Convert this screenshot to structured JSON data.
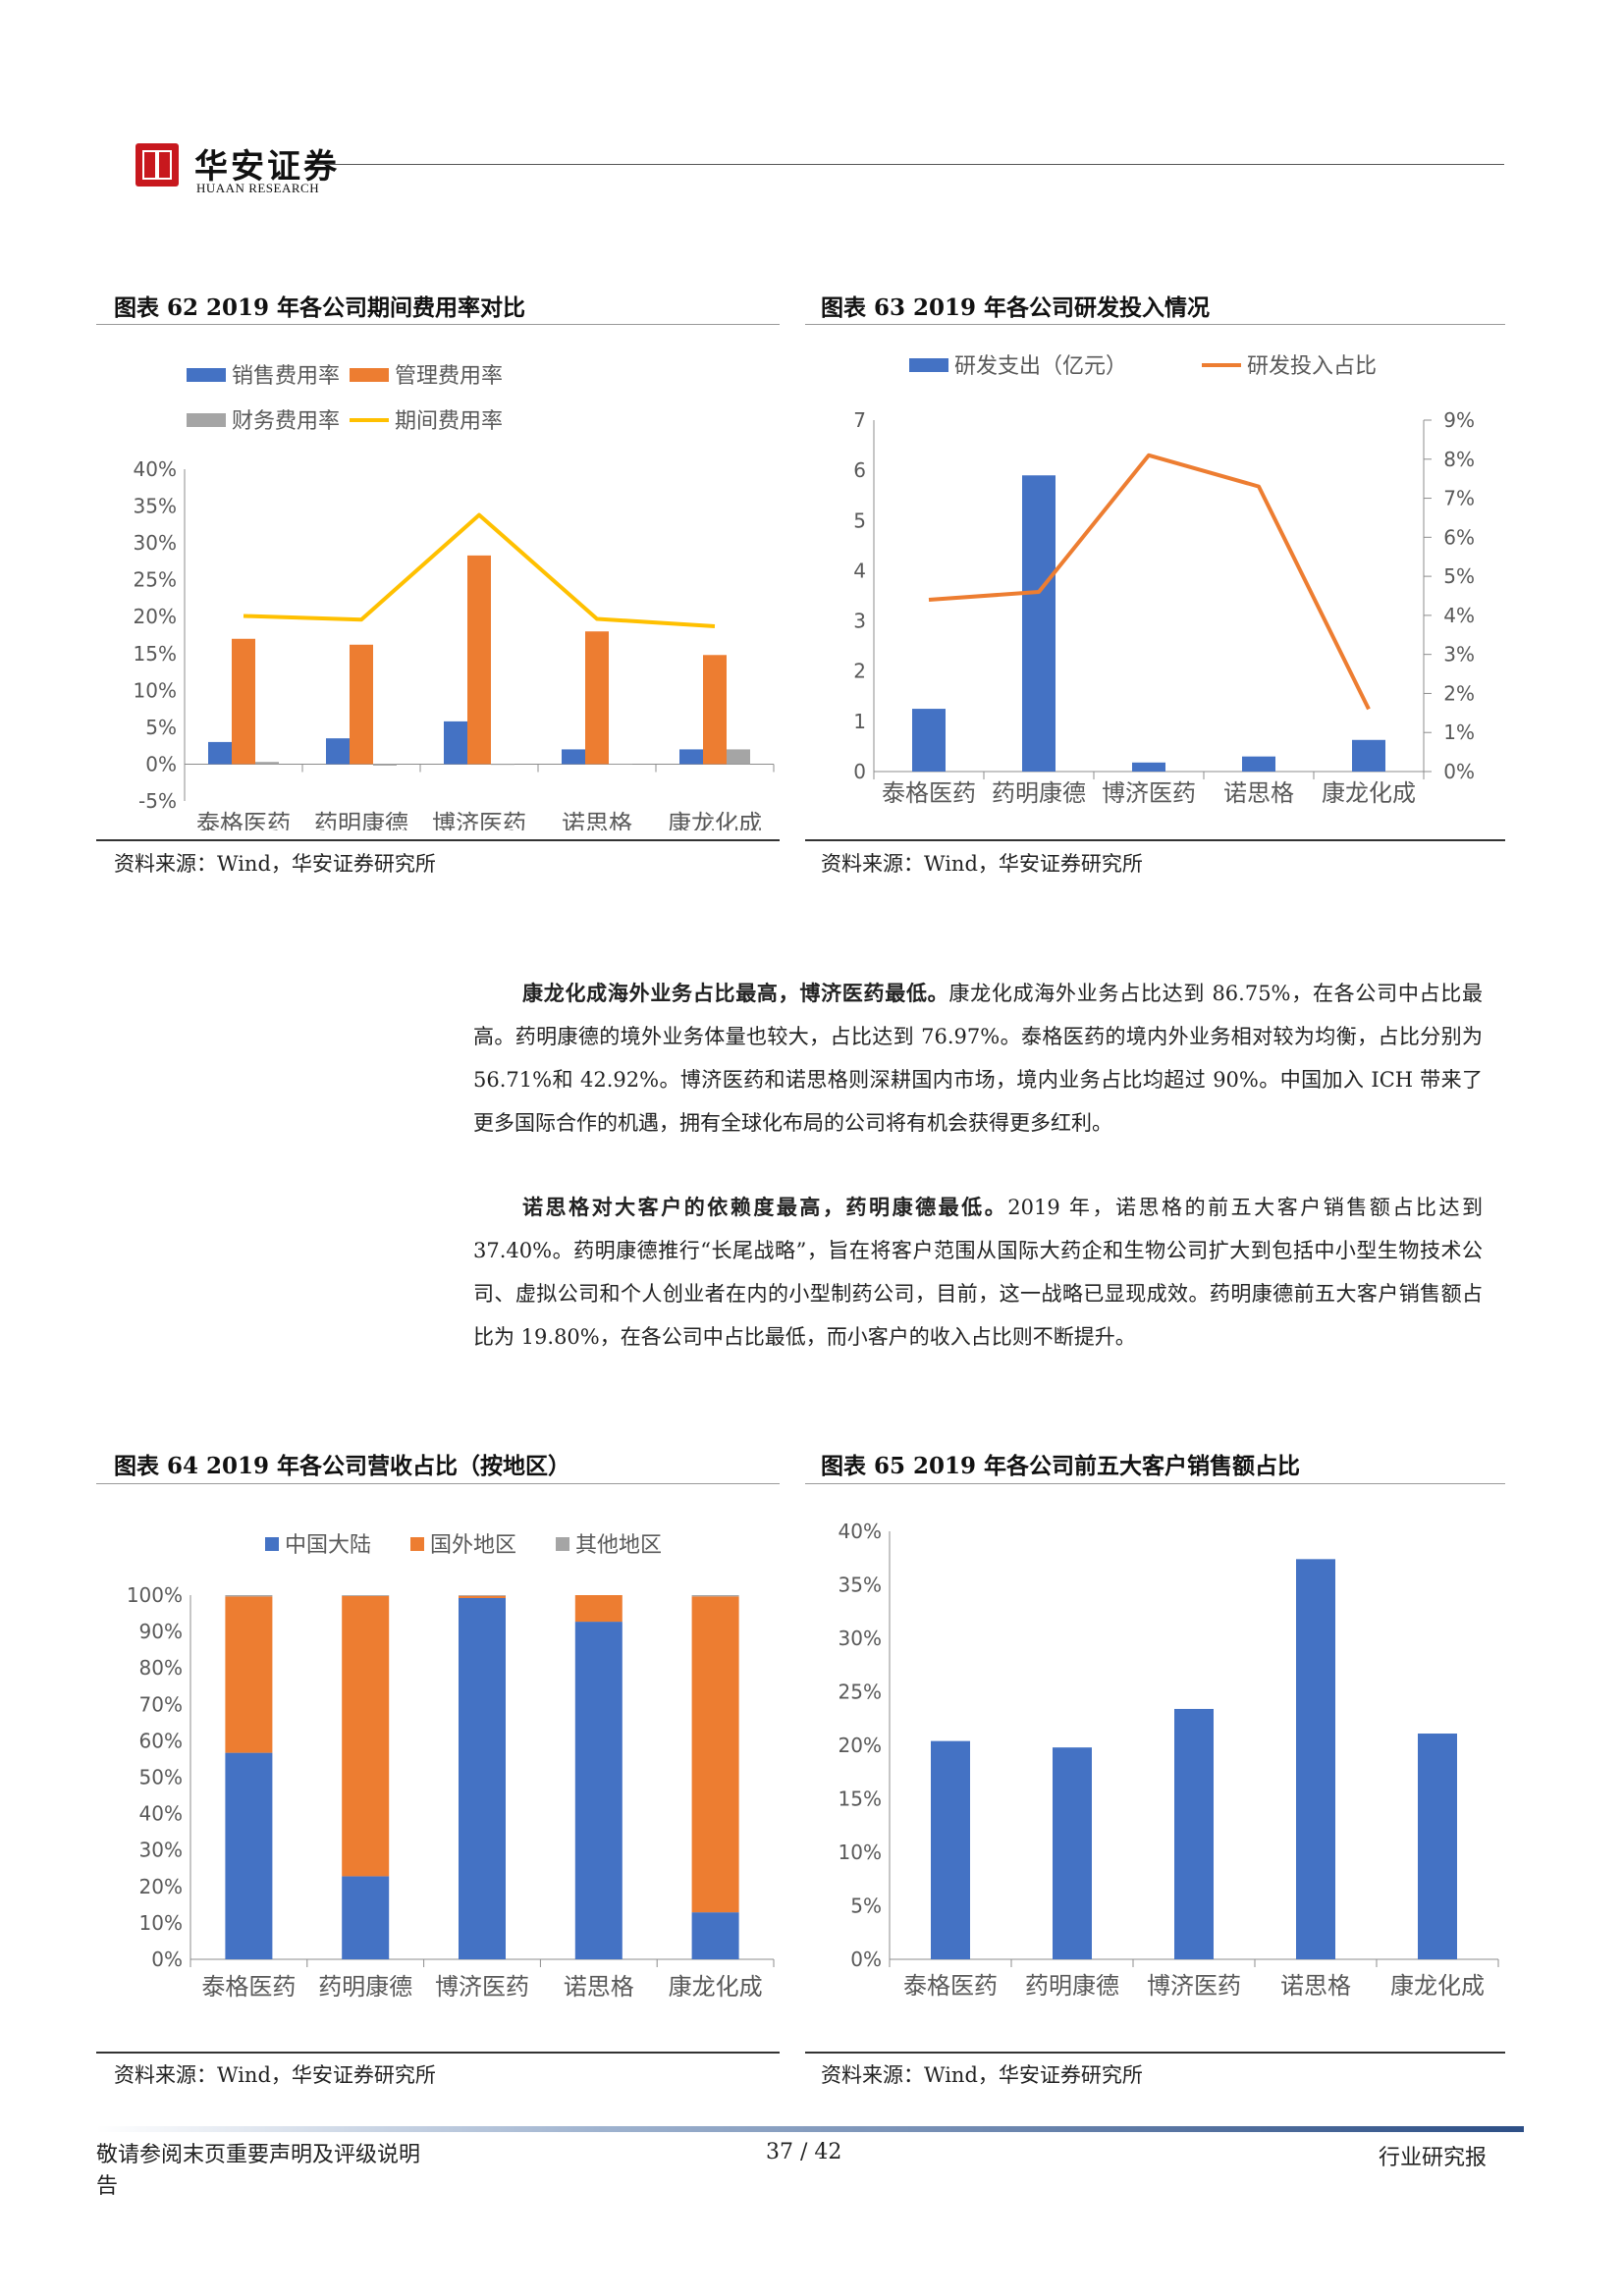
{
  "header": {
    "brand_cn": "华安证券",
    "brand_en": "HUAAN RESEARCH"
  },
  "colors": {
    "blue": "#4472c4",
    "orange": "#ed7d31",
    "gray": "#a5a5a5",
    "yellow": "#ffc000"
  },
  "fig62": {
    "title": "图表 62 2019 年各公司期间费用率对比",
    "source": "资料来源：Wind，华安证券研究所",
    "legend": [
      "销售费用率",
      "管理费用率",
      "财务费用率",
      "期间费用率"
    ],
    "chart_data": {
      "type": "bar",
      "categories": [
        "泰格医药",
        "药明康德",
        "博济医药",
        "诺思格",
        "康龙化成"
      ],
      "series": [
        {
          "name": "销售费用率",
          "values": [
            3.0,
            3.5,
            5.8,
            2.0,
            2.0
          ]
        },
        {
          "name": "管理费用率",
          "values": [
            17.0,
            16.2,
            28.3,
            18.0,
            14.8
          ]
        },
        {
          "name": "财务费用率",
          "values": [
            0.3,
            -0.2,
            -0.1,
            0.0,
            2.0
          ]
        },
        {
          "name": "期间费用率",
          "type": "line",
          "values": [
            20.1,
            19.6,
            33.8,
            19.7,
            18.7
          ]
        }
      ],
      "ylim": [
        -5,
        40
      ],
      "yticks": [
        "-5%",
        "0%",
        "5%",
        "10%",
        "15%",
        "20%",
        "25%",
        "30%",
        "35%",
        "40%"
      ]
    }
  },
  "fig63": {
    "title": "图表 63 2019 年各公司研发投入情况",
    "source": "资料来源：Wind，华安证券研究所",
    "legend": [
      "研发支出（亿元）",
      "研发投入占比"
    ],
    "chart_data": {
      "type": "bar",
      "categories": [
        "泰格医药",
        "药明康德",
        "博济医药",
        "诺思格",
        "康龙化成"
      ],
      "series": [
        {
          "name": "研发支出（亿元）",
          "values": [
            1.25,
            5.9,
            0.18,
            0.3,
            0.63
          ]
        },
        {
          "name": "研发投入占比",
          "type": "line",
          "axis": "right",
          "values": [
            4.4,
            4.6,
            8.1,
            7.3,
            1.6
          ]
        }
      ],
      "ylim": [
        0,
        7
      ],
      "y2lim": [
        0,
        9
      ],
      "yticks": [
        "0",
        "1",
        "2",
        "3",
        "4",
        "5",
        "6",
        "7"
      ],
      "y2ticks": [
        "0%",
        "1%",
        "2%",
        "3%",
        "4%",
        "5%",
        "6%",
        "7%",
        "8%",
        "9%"
      ]
    }
  },
  "paragraphs": {
    "p1_bold": "康龙化成海外业务占比最高，博济医药最低。",
    "p1_text": "康龙化成海外业务占比达到 86.75%，在各公司中占比最高。药明康德的境外业务体量也较大，占比达到 76.97%。泰格医药的境内外业务相对较为均衡，占比分别为 56.71%和 42.92%。博济医药和诺思格则深耕国内市场，境内业务占比均超过 90%。中国加入 ICH 带来了更多国际合作的机遇，拥有全球化布局的公司将有机会获得更多红利。",
    "p2_bold": "诺思格对大客户的依赖度最高，药明康德最低。",
    "p2_text": "2019 年，诺思格的前五大客户销售额占比达到 37.40%。药明康德推行“长尾战略”，旨在将客户范围从国际大药企和生物公司扩大到包括中小型生物技术公司、虚拟公司和个人创业者在内的小型制药公司，目前，这一战略已显现成效。药明康德前五大客户销售额占比为 19.80%，在各公司中占比最低，而小客户的收入占比则不断提升。"
  },
  "fig64": {
    "title": "图表 64 2019 年各公司营收占比（按地区）",
    "source": "资料来源：Wind，华安证券研究所",
    "legend": [
      "中国大陆",
      "国外地区",
      "其他地区"
    ],
    "chart_data": {
      "type": "bar",
      "stacked": true,
      "categories": [
        "泰格医药",
        "药明康德",
        "博济医药",
        "诺思格",
        "康龙化成"
      ],
      "series": [
        {
          "name": "中国大陆",
          "values": [
            56.71,
            22.8,
            99.2,
            92.7,
            12.9
          ]
        },
        {
          "name": "国外地区",
          "values": [
            42.92,
            76.97,
            0.6,
            7.3,
            86.75
          ]
        },
        {
          "name": "其他地区",
          "values": [
            0.37,
            0.23,
            0.2,
            0.0,
            0.35
          ]
        }
      ],
      "ylim": [
        0,
        100
      ],
      "yticks": [
        "0%",
        "10%",
        "20%",
        "30%",
        "40%",
        "50%",
        "60%",
        "70%",
        "80%",
        "90%",
        "100%"
      ]
    }
  },
  "fig65": {
    "title": "图表 65 2019 年各公司前五大客户销售额占比",
    "source": "资料来源：Wind，华安证券研究所",
    "chart_data": {
      "type": "bar",
      "categories": [
        "泰格医药",
        "药明康德",
        "博济医药",
        "诺思格",
        "康龙化成"
      ],
      "values": [
        20.4,
        19.8,
        23.4,
        37.4,
        21.1
      ],
      "ylim": [
        0,
        40
      ],
      "yticks": [
        "0%",
        "5%",
        "10%",
        "15%",
        "20%",
        "25%",
        "30%",
        "35%",
        "40%"
      ]
    }
  },
  "footer": {
    "left": "敬请参阅末页重要声明及评级说明",
    "left2": "告",
    "page": "37 / 42",
    "right": "行业研究报"
  }
}
